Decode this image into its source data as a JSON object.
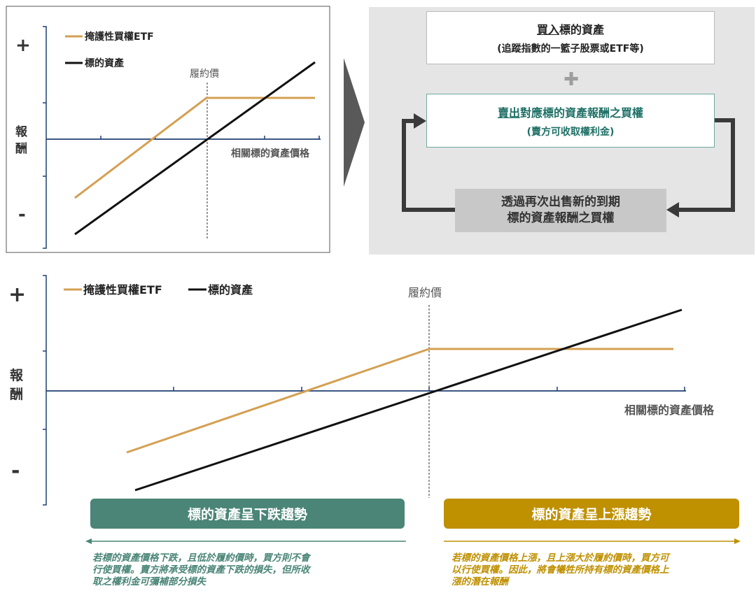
{
  "colors": {
    "orange": "#D4A053",
    "black": "#111111",
    "axis_blue": "#1F3F73",
    "teal": "#4A8577",
    "gold": "#BF9000",
    "flow_teal": "#1F7066",
    "panel_bg": "#E5E5E5",
    "gray_box": "#C8C8C8",
    "arrow_gray": "#555555"
  },
  "top_chart": {
    "plus": "+",
    "minus": "-",
    "ylabel_1": "報",
    "ylabel_2": "酬",
    "legend_protective": "掩護性買權ETF",
    "legend_underlying": "標的資產",
    "strike_label": "履約價",
    "xlabel": "相關標的資產價格"
  },
  "flow": {
    "box1_title_underline": "買入",
    "box1_title_rest": "標的資產",
    "box1_sub": "(追蹤指數的一籃子股票或ETF等)",
    "plus_sign": "✚",
    "box2_title_underline": "賣出",
    "box2_title_rest": "對應標的資產報酬之買權",
    "box2_sub": "(賣方可收取權利金)",
    "box3_line1": "透過再次出售新的到期",
    "box3_line2": "標的資產報酬之買權"
  },
  "bottom_chart": {
    "plus": "+",
    "minus": "-",
    "ylabel_1": "報",
    "ylabel_2": "酬",
    "legend_protective": "掩護性買權ETF",
    "legend_underlying": "標的資產",
    "strike_label": "履約價",
    "xlabel": "相關標的資產價格"
  },
  "banners": {
    "down": "標的資產呈下跌趨勢",
    "up": "標的資產呈上漲趨勢"
  },
  "notes": {
    "down_line1": "若標的資產價格下跌，且低於履約價時，買方則不會",
    "down_line2": "行使買權。賣方將承受標的資產下跌的損失，但所收",
    "down_line3": "取之權利金可彌補部分損失",
    "up_line1": "若標的資產價格上漲，且上漲大於履約價時，買方可",
    "up_line2": "以行使買權。因此，將會犧牲所持有標的資產價格上",
    "up_line3": "漲的潛在報酬"
  }
}
